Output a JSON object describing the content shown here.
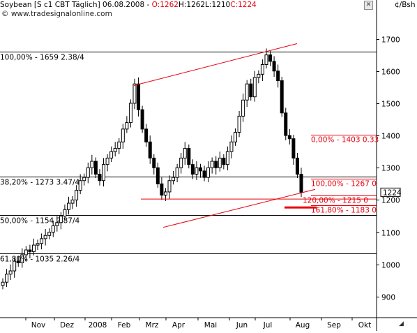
{
  "window": {
    "close_glyph": "✕",
    "resize_glyph": "◢"
  },
  "header": {
    "title_prefix": "Soybean [S c1 CBT  Täglich] 06.08.2008 - ",
    "open": "O:1262",
    "high": "H:1262",
    "low": "L:1210",
    "close": "C:1224",
    "watermark": "© www.tradesignalonline.com",
    "unit": "¢/Bsh"
  },
  "colors": {
    "red": "#e8000d",
    "grid": "#000000",
    "candle": "#000000",
    "axis_text": "#000000"
  },
  "chart_data": {
    "type": "candlestick",
    "y_axis": {
      "range": [
        835,
        1790
      ],
      "ticks": [
        900,
        1000,
        1100,
        1200,
        1300,
        1400,
        1500,
        1600,
        1700
      ]
    },
    "x_axis": {
      "ticks": [
        "Nov",
        "Dez",
        "2008",
        "Feb",
        "Mrz",
        "Apr",
        "Mai",
        "Jun",
        "Jul",
        "Aug",
        "Sep",
        "Okt"
      ]
    },
    "last_price": "1224",
    "horizontal_levels": [
      {
        "value": 1659,
        "label": "100,00% - 1659 2.38/4"
      },
      {
        "value": 1273,
        "label": "38,20% - 1273 3.47/4"
      },
      {
        "value": 1154,
        "label": "50,00% - 1154 2.87/4"
      },
      {
        "value": 1035,
        "label": "61,80% - 1035 2.26/4"
      }
    ],
    "extension_levels": [
      {
        "value": 1403,
        "label": "0,00% - 1403 0.33"
      },
      {
        "value": 1267,
        "label": "100,00% - 1267 0"
      },
      {
        "value": 1215,
        "label": "120,00% - 1215 0"
      },
      {
        "value": 1183,
        "label": "161,80% - 1183 0"
      }
    ],
    "support_level": 1203,
    "close_series": [
      945,
      970,
      980,
      1010,
      1005,
      1030,
      1045,
      1040,
      1060,
      1065,
      1080,
      1090,
      1100,
      1120,
      1130,
      1150,
      1170,
      1190,
      1200,
      1230,
      1260,
      1270,
      1300,
      1320,
      1280,
      1260,
      1310,
      1330,
      1350,
      1360,
      1380,
      1420,
      1440,
      1500,
      1560,
      1480,
      1420,
      1380,
      1330,
      1300,
      1250,
      1215,
      1225,
      1260,
      1270,
      1300,
      1330,
      1360,
      1310,
      1280,
      1300,
      1290,
      1270,
      1300,
      1320,
      1300,
      1330,
      1310,
      1350,
      1380,
      1410,
      1460,
      1510,
      1560,
      1520,
      1580,
      1590,
      1620,
      1650,
      1630,
      1600,
      1570,
      1470,
      1400,
      1390,
      1330,
      1280,
      1224
    ]
  }
}
